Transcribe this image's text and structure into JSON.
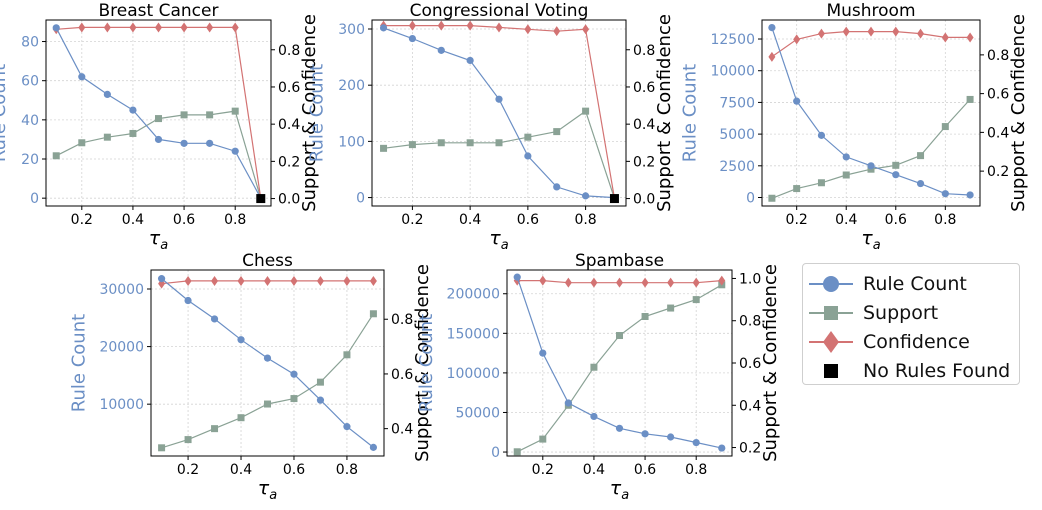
{
  "colors": {
    "rule": "#6b8fc5",
    "support": "#8aa295",
    "confidence": "#d37373",
    "none": "#000000",
    "grid": "#d4d4d4"
  },
  "legend": {
    "items": [
      {
        "label": "Rule Count",
        "marker": "circle",
        "color": "#6b8fc5"
      },
      {
        "label": "Support",
        "marker": "square",
        "color": "#8aa295"
      },
      {
        "label": "Confidence",
        "marker": "diamond",
        "color": "#d37373"
      },
      {
        "label": "No Rules Found",
        "marker": "square-filled",
        "color": "#000000"
      }
    ]
  },
  "chart_data": [
    {
      "type": "line",
      "title": "Breast Cancer",
      "xlabel": "τ_a",
      "ylabel_left": "Rule Count",
      "ylabel_right": "Support & Confidence",
      "x": [
        0.1,
        0.2,
        0.3,
        0.4,
        0.5,
        0.6,
        0.7,
        0.8,
        0.9
      ],
      "xticks": [
        "0.2",
        "0.4",
        "0.6",
        "0.8"
      ],
      "xlim": [
        0.06,
        0.94
      ],
      "ylim_left": [
        -4,
        91
      ],
      "yticks_left": [
        "0",
        "20",
        "40",
        "60",
        "80"
      ],
      "ylim_right": [
        -0.04,
        0.96
      ],
      "yticks_right": [
        "0.0",
        "0.2",
        "0.4",
        "0.6",
        "0.8"
      ],
      "series": [
        {
          "name": "Rule Count",
          "axis": "left",
          "values": [
            87,
            62,
            53,
            45,
            30,
            28,
            28,
            24,
            0
          ]
        },
        {
          "name": "Support",
          "axis": "right",
          "values": [
            0.23,
            0.3,
            0.33,
            0.35,
            0.43,
            0.45,
            0.45,
            0.47,
            0.0
          ]
        },
        {
          "name": "Confidence",
          "axis": "right",
          "values": [
            0.91,
            0.92,
            0.92,
            0.92,
            0.92,
            0.92,
            0.92,
            0.92,
            0.0
          ]
        }
      ],
      "no_rules_found": [
        0.9
      ]
    },
    {
      "type": "line",
      "title": "Congressional Voting",
      "xlabel": "τ_a",
      "ylabel_left": "Rule Count",
      "ylabel_right": "Support & Confidence",
      "x": [
        0.1,
        0.2,
        0.3,
        0.4,
        0.5,
        0.6,
        0.7,
        0.8,
        0.9
      ],
      "xticks": [
        "0.2",
        "0.4",
        "0.6",
        "0.8"
      ],
      "xlim": [
        0.06,
        0.94
      ],
      "ylim_left": [
        -15,
        316
      ],
      "yticks_left": [
        "0",
        "100",
        "200",
        "300"
      ],
      "ylim_right": [
        -0.04,
        0.96
      ],
      "yticks_right": [
        "0.0",
        "0.2",
        "0.4",
        "0.6",
        "0.8"
      ],
      "series": [
        {
          "name": "Rule Count",
          "axis": "left",
          "values": [
            302,
            283,
            262,
            244,
            175,
            74,
            19,
            3,
            0
          ]
        },
        {
          "name": "Support",
          "axis": "right",
          "values": [
            0.27,
            0.29,
            0.3,
            0.3,
            0.3,
            0.33,
            0.36,
            0.47,
            0.0
          ]
        },
        {
          "name": "Confidence",
          "axis": "right",
          "values": [
            0.93,
            0.93,
            0.93,
            0.93,
            0.92,
            0.91,
            0.9,
            0.91,
            0.0
          ]
        }
      ],
      "no_rules_found": [
        0.9
      ]
    },
    {
      "type": "line",
      "title": "Mushroom",
      "xlabel": "τ_a",
      "ylabel_left": "Rule Count",
      "ylabel_right": "Support & Confidence",
      "x": [
        0.1,
        0.2,
        0.3,
        0.4,
        0.5,
        0.6,
        0.7,
        0.8,
        0.9
      ],
      "xticks": [
        "0.2",
        "0.4",
        "0.6",
        "0.8"
      ],
      "xlim": [
        0.06,
        0.94
      ],
      "ylim_left": [
        -670,
        14000
      ],
      "yticks_left": [
        "0",
        "2500",
        "5000",
        "7500",
        "10000",
        "12500"
      ],
      "ylim_right": [
        0.02,
        0.98
      ],
      "yticks_right": [
        "0.2",
        "0.4",
        "0.6",
        "0.8"
      ],
      "series": [
        {
          "name": "Rule Count",
          "axis": "left",
          "values": [
            13400,
            7600,
            4900,
            3200,
            2500,
            1800,
            1100,
            300,
            200
          ]
        },
        {
          "name": "Support",
          "axis": "right",
          "values": [
            0.06,
            0.11,
            0.14,
            0.18,
            0.21,
            0.23,
            0.28,
            0.43,
            0.57
          ]
        },
        {
          "name": "Confidence",
          "axis": "right",
          "values": [
            0.79,
            0.88,
            0.91,
            0.92,
            0.92,
            0.92,
            0.91,
            0.89,
            0.89
          ]
        }
      ]
    },
    {
      "type": "line",
      "title": "Chess",
      "xlabel": "τ_a",
      "ylabel_left": "Rule Count",
      "ylabel_right": "Support & Confidence",
      "x": [
        0.1,
        0.2,
        0.3,
        0.4,
        0.5,
        0.6,
        0.7,
        0.8,
        0.9
      ],
      "xticks": [
        "0.2",
        "0.4",
        "0.6",
        "0.8"
      ],
      "xlim": [
        0.06,
        0.94
      ],
      "ylim_left": [
        1000,
        33300
      ],
      "yticks_left": [
        "10000",
        "20000",
        "30000"
      ],
      "ylim_right": [
        0.3,
        0.98
      ],
      "yticks_right": [
        "0.4",
        "0.6",
        "0.8"
      ],
      "series": [
        {
          "name": "Rule Count",
          "axis": "left",
          "values": [
            31800,
            28000,
            24800,
            21200,
            18000,
            15200,
            10700,
            6100,
            2500
          ]
        },
        {
          "name": "Support",
          "axis": "right",
          "values": [
            0.33,
            0.36,
            0.4,
            0.44,
            0.49,
            0.51,
            0.57,
            0.67,
            0.82
          ]
        },
        {
          "name": "Confidence",
          "axis": "right",
          "values": [
            0.93,
            0.94,
            0.94,
            0.94,
            0.94,
            0.94,
            0.94,
            0.94,
            0.94
          ]
        }
      ]
    },
    {
      "type": "line",
      "title": "Spambase",
      "xlabel": "τ_a",
      "ylabel_left": "Rule Count",
      "ylabel_right": "Support & Confidence",
      "x": [
        0.1,
        0.2,
        0.3,
        0.4,
        0.5,
        0.6,
        0.7,
        0.8,
        0.9
      ],
      "xticks": [
        "0.2",
        "0.4",
        "0.6",
        "0.8"
      ],
      "xlim": [
        0.06,
        0.94
      ],
      "ylim_left": [
        -5000,
        230000
      ],
      "yticks_left": [
        "0",
        "50000",
        "100000",
        "150000",
        "200000"
      ],
      "ylim_right": [
        0.16,
        1.04
      ],
      "yticks_right": [
        "0.2",
        "0.4",
        "0.6",
        "0.8",
        "1.0"
      ],
      "series": [
        {
          "name": "Rule Count",
          "axis": "left",
          "values": [
            221000,
            125000,
            62000,
            45000,
            30000,
            23000,
            19000,
            12000,
            5000
          ]
        },
        {
          "name": "Support",
          "axis": "right",
          "values": [
            0.18,
            0.24,
            0.4,
            0.58,
            0.73,
            0.82,
            0.86,
            0.9,
            0.97
          ]
        },
        {
          "name": "Confidence",
          "axis": "right",
          "values": [
            0.99,
            0.99,
            0.98,
            0.98,
            0.98,
            0.98,
            0.98,
            0.98,
            0.99
          ]
        }
      ]
    }
  ]
}
